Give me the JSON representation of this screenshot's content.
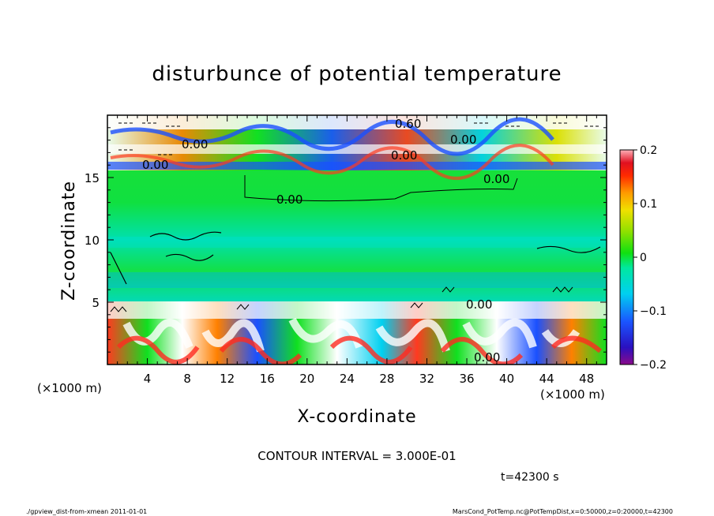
{
  "chart_data": {
    "type": "heatmap",
    "title": "disturbunce of potential temperature",
    "xlabel": "X-coordinate",
    "ylabel": "Z-coordinate",
    "x_unit_left": "(×1000 m)",
    "x_unit_right": "(×1000 m)",
    "xlim": [
      0,
      50
    ],
    "ylim": [
      0,
      20
    ],
    "xticks": [
      "4",
      "8",
      "12",
      "16",
      "20",
      "24",
      "28",
      "32",
      "36",
      "40",
      "44",
      "48"
    ],
    "yticks": [
      "5",
      "10",
      "15"
    ],
    "colorbar": {
      "range": [
        -0.2,
        0.2
      ],
      "ticks": [
        "0.2",
        "0.1",
        "0",
        "−0.1",
        "−0.2"
      ]
    },
    "contour_labels": [
      "0.60",
      "0.00",
      "0.00",
      "0.00",
      "0.00",
      "0.00",
      "0.00",
      "0.00",
      "0.00"
    ],
    "contour_interval": "CONTOUR INTERVAL = 3.000E-01",
    "time_label": "t=42300 s",
    "footer_left": "./gpview_dist-from-xmean   2011-01-01",
    "footer_right": "MarsCond_PotTemp.nc@PotTempDist,x=0:50000,z=0:20000,t=42300"
  }
}
